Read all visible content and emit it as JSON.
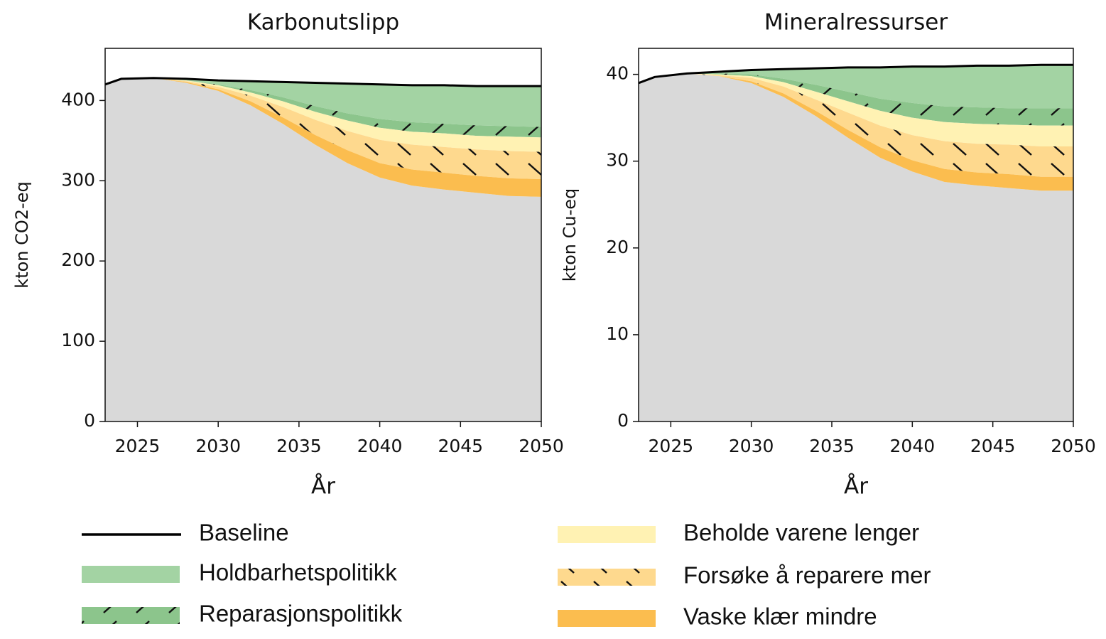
{
  "chart_data": [
    {
      "type": "area",
      "title": "Karbonutslipp",
      "xlabel": "År",
      "ylabel": "kton CO2-eq",
      "x": [
        2023,
        2024,
        2026,
        2028,
        2030,
        2032,
        2034,
        2036,
        2038,
        2040,
        2042,
        2044,
        2046,
        2048,
        2050
      ],
      "xlim": [
        2023,
        2050
      ],
      "xticks": [
        2025,
        2030,
        2035,
        2040,
        2045,
        2050
      ],
      "ylim": [
        0,
        465
      ],
      "yticks": [
        0,
        100,
        200,
        300,
        400
      ],
      "base_color": "#d9d9d9",
      "series": [
        {
          "name": "Baseline",
          "kind": "line",
          "color": "#000000",
          "values": [
            420,
            427,
            428,
            427,
            425,
            424,
            423,
            422,
            421,
            420,
            419,
            419,
            418,
            418,
            418
          ]
        },
        {
          "name": "Holdbarhetspolitikk",
          "color": "#a3d3a3",
          "values": [
            0,
            0,
            0,
            2,
            5,
            11,
            19,
            29,
            37,
            43,
            46,
            48,
            49,
            50,
            51
          ]
        },
        {
          "name": "Reparasjonspolitikk",
          "color": "#8cc58c",
          "hatch": "/",
          "values": [
            0,
            0,
            0,
            0,
            1,
            3,
            5,
            7,
            9,
            11,
            12,
            12,
            13,
            13,
            13
          ]
        },
        {
          "name": "Beholde varene lenger",
          "color": "#fff2b3",
          "values": [
            0,
            0,
            0,
            1,
            2,
            4,
            7,
            10,
            13,
            15,
            16,
            17,
            17,
            18,
            18
          ]
        },
        {
          "name": "Forsøke å reparere mer",
          "color": "#fed98e",
          "hatch": "\\",
          "values": [
            0,
            0,
            0,
            1,
            3,
            7,
            13,
            19,
            24,
            29,
            31,
            32,
            33,
            34,
            34
          ]
        },
        {
          "name": "Vaske klær mindre",
          "color": "#fbbd4f",
          "values": [
            0,
            0,
            0,
            1,
            2,
            5,
            8,
            12,
            16,
            18,
            20,
            21,
            21,
            22,
            22
          ]
        }
      ]
    },
    {
      "type": "area",
      "title": "Mineralressurser",
      "xlabel": "År",
      "ylabel": "kton Cu-eq",
      "x": [
        2023,
        2024,
        2026,
        2028,
        2030,
        2032,
        2034,
        2036,
        2038,
        2040,
        2042,
        2044,
        2046,
        2048,
        2050
      ],
      "xlim": [
        2023,
        2050
      ],
      "xticks": [
        2025,
        2030,
        2035,
        2040,
        2045,
        2050
      ],
      "ylim": [
        0,
        43
      ],
      "yticks": [
        0,
        10,
        20,
        30,
        40
      ],
      "base_color": "#d9d9d9",
      "series": [
        {
          "name": "Baseline",
          "kind": "line",
          "color": "#000000",
          "values": [
            39.0,
            39.7,
            40.1,
            40.3,
            40.5,
            40.6,
            40.7,
            40.8,
            40.8,
            40.9,
            40.9,
            41.0,
            41.0,
            41.1,
            41.1
          ]
        },
        {
          "name": "Holdbarhetspolitikk",
          "color": "#a3d3a3",
          "values": [
            0,
            0,
            0,
            0.2,
            0.5,
            1.1,
            1.9,
            2.8,
            3.6,
            4.2,
            4.6,
            4.8,
            4.9,
            5.0,
            5.0
          ]
        },
        {
          "name": "Reparasjonspolitikk",
          "color": "#8cc58c",
          "hatch": "/",
          "values": [
            0,
            0,
            0,
            0.1,
            0.2,
            0.4,
            0.8,
            1.1,
            1.4,
            1.7,
            1.8,
            1.9,
            1.9,
            2.0,
            2.0
          ]
        },
        {
          "name": "Beholde varene lenger",
          "color": "#fff2b3",
          "values": [
            0,
            0,
            0,
            0.1,
            0.2,
            0.5,
            0.9,
            1.3,
            1.7,
            2.0,
            2.2,
            2.3,
            2.3,
            2.4,
            2.4
          ]
        },
        {
          "name": "Forsøke å reparere mer",
          "color": "#fed98e",
          "hatch": "\\",
          "values": [
            0,
            0,
            0,
            0.1,
            0.4,
            0.8,
            1.3,
            2.0,
            2.5,
            2.9,
            3.2,
            3.3,
            3.4,
            3.5,
            3.5
          ]
        },
        {
          "name": "Vaske klær mindre",
          "color": "#fbbd4f",
          "values": [
            0,
            0,
            0,
            0,
            0.2,
            0.4,
            0.6,
            0.9,
            1.2,
            1.3,
            1.5,
            1.5,
            1.6,
            1.6,
            1.6
          ]
        }
      ]
    }
  ]
}
